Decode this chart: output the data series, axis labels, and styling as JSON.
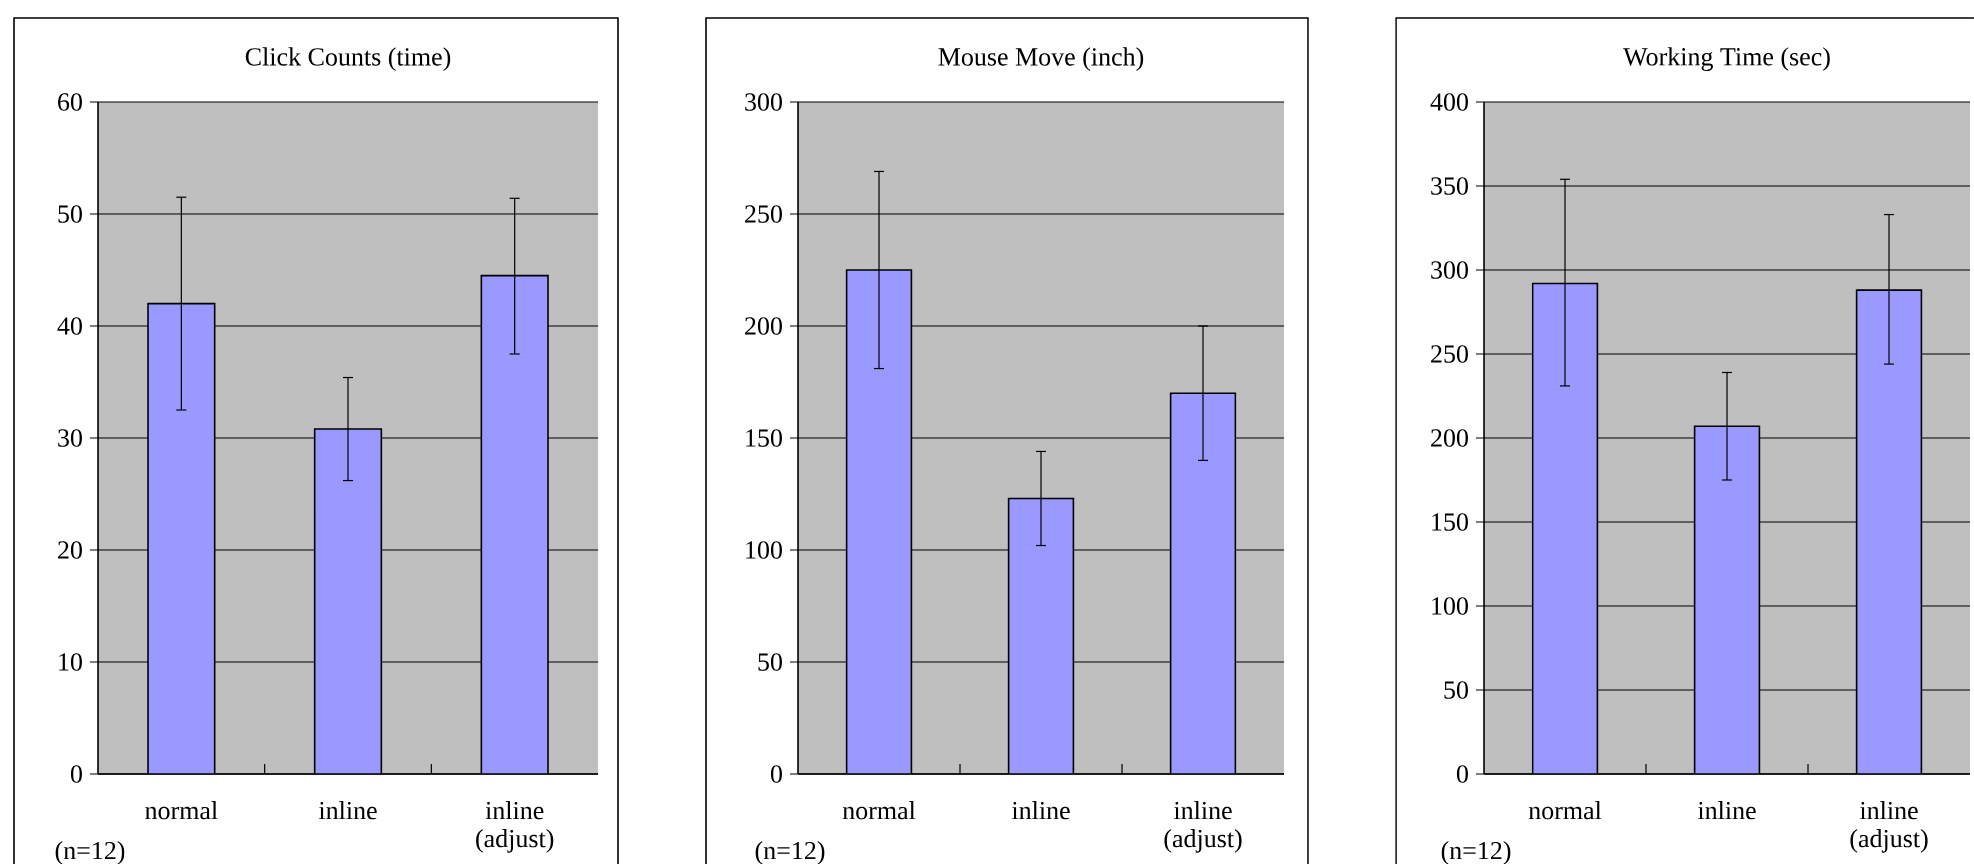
{
  "chart_data": [
    {
      "type": "bar",
      "title": "Click Counts (time)",
      "categories": [
        "normal",
        "inline",
        "inline (adjust)"
      ],
      "values": [
        42,
        30.8,
        44.5
      ],
      "errors": [
        [
          32.5,
          51.5
        ],
        [
          26.2,
          35.4
        ],
        [
          37.5,
          51.4
        ]
      ],
      "color": "#9999ff",
      "ylim": [
        0,
        60
      ],
      "yticks": [
        0,
        10,
        20,
        30,
        40,
        50,
        60
      ],
      "grid": "y",
      "annotations": [
        "(n=12)"
      ]
    },
    {
      "type": "bar",
      "title": "Mouse Move (inch)",
      "categories": [
        "normal",
        "inline",
        "inline (adjust)"
      ],
      "values": [
        225,
        123,
        170
      ],
      "errors": [
        [
          181,
          269
        ],
        [
          102,
          144
        ],
        [
          140,
          200
        ]
      ],
      "color": "#9999ff",
      "ylim": [
        0,
        300
      ],
      "yticks": [
        0,
        50,
        100,
        150,
        200,
        250,
        300
      ],
      "grid": "y",
      "annotations": [
        "(n=12)"
      ]
    },
    {
      "type": "bar",
      "title": "Working Time (sec)",
      "categories": [
        "normal",
        "inline",
        "inline (adjust)"
      ],
      "values": [
        292,
        207,
        288
      ],
      "errors": [
        [
          231,
          354
        ],
        [
          175,
          239
        ],
        [
          244,
          333
        ]
      ],
      "color": "#9999ff",
      "ylim": [
        0,
        400
      ],
      "yticks": [
        0,
        50,
        100,
        150,
        200,
        250,
        300,
        350,
        400
      ],
      "grid": "y",
      "annotations": [
        "(n=12)"
      ]
    }
  ]
}
